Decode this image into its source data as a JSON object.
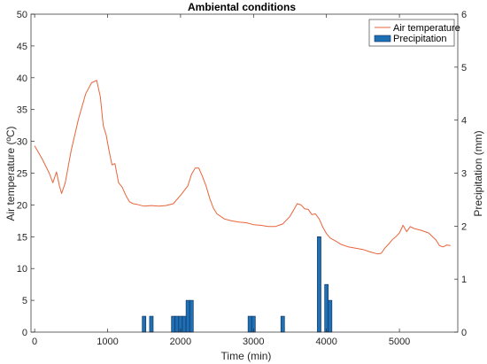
{
  "chart_data": {
    "type": "line+bar",
    "title": "Ambiental conditions",
    "xlabel": "Time (min)",
    "ylabel_left": "Air temperature (ºC)",
    "ylabel_right": "Precipitation (mm)",
    "xlim": [
      -50,
      5800
    ],
    "ylim_left": [
      0,
      50
    ],
    "ylim_right": [
      0,
      6
    ],
    "x_ticks": [
      "0",
      "1000",
      "2000",
      "3000",
      "4000",
      "5000"
    ],
    "y_left_ticks": [
      "0",
      "5",
      "10",
      "15",
      "20",
      "25",
      "30",
      "35",
      "40",
      "45",
      "50"
    ],
    "y_right_ticks": [
      "0",
      "1",
      "2",
      "3",
      "4",
      "5",
      "6"
    ],
    "legend": {
      "position": "top-right",
      "entries": [
        "Air temperature",
        "Precipitation"
      ]
    },
    "colors": {
      "temperature": "#e8643a",
      "precipitation": "#1f6fb5",
      "bar_edge": "#0c2d55"
    },
    "series": [
      {
        "name": "Air temperature",
        "axis": "left",
        "x": [
          0,
          100,
          200,
          250,
          300,
          340,
          370,
          420,
          500,
          600,
          700,
          780,
          850,
          900,
          940,
          980,
          1020,
          1060,
          1100,
          1150,
          1200,
          1250,
          1300,
          1350,
          1400,
          1500,
          1600,
          1700,
          1800,
          1900,
          2000,
          2100,
          2150,
          2200,
          2250,
          2300,
          2350,
          2400,
          2450,
          2500,
          2600,
          2700,
          2800,
          2900,
          3000,
          3100,
          3200,
          3300,
          3400,
          3500,
          3550,
          3600,
          3650,
          3700,
          3750,
          3800,
          3850,
          3900,
          3950,
          4000,
          4050,
          4100,
          4200,
          4300,
          4400,
          4500,
          4600,
          4700,
          4750,
          4800,
          4850,
          4900,
          4950,
          5000,
          5050,
          5100,
          5150,
          5200,
          5300,
          5400,
          5500,
          5550,
          5600,
          5650,
          5700
        ],
        "y": [
          29.3,
          27.3,
          25.0,
          23.5,
          25.2,
          23.0,
          21.8,
          23.5,
          28.5,
          33.5,
          37.5,
          39.2,
          39.6,
          37.0,
          32.5,
          31.0,
          28.5,
          26.3,
          26.5,
          23.5,
          22.8,
          21.5,
          20.5,
          20.2,
          20.1,
          19.8,
          19.9,
          19.8,
          19.9,
          20.2,
          21.5,
          23.0,
          24.8,
          25.8,
          25.8,
          24.5,
          23.0,
          21.0,
          19.5,
          18.6,
          17.8,
          17.5,
          17.3,
          17.2,
          16.9,
          16.8,
          16.6,
          16.6,
          17.0,
          18.2,
          19.2,
          20.2,
          20.0,
          19.4,
          19.3,
          18.5,
          18.6,
          17.8,
          16.5,
          15.5,
          14.8,
          14.5,
          13.8,
          13.4,
          13.2,
          13.0,
          12.6,
          12.3,
          12.4,
          13.2,
          13.8,
          14.5,
          15.0,
          15.6,
          16.8,
          15.8,
          16.6,
          16.3,
          16.0,
          15.6,
          14.5,
          13.6,
          13.4,
          13.7,
          13.6
        ]
      },
      {
        "name": "Precipitation",
        "axis": "right",
        "bar_width": 50,
        "x": [
          1500,
          1600,
          1900,
          1950,
          2000,
          2050,
          2100,
          2150,
          2950,
          3000,
          3400,
          3900,
          4000,
          4050
        ],
        "values": [
          0.3,
          0.3,
          0.3,
          0.3,
          0.3,
          0.3,
          0.6,
          0.6,
          0.3,
          0.3,
          0.3,
          1.8,
          0.9,
          0.6
        ]
      }
    ]
  }
}
